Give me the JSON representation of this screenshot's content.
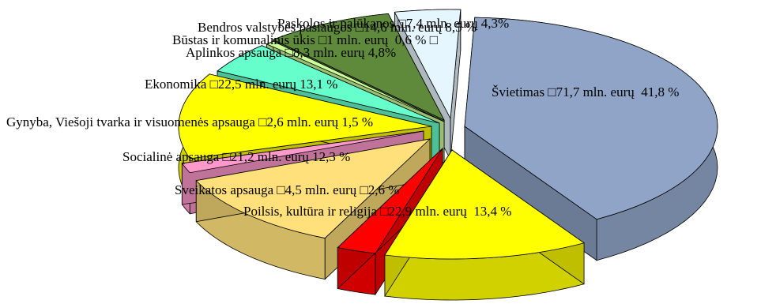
{
  "chart_data": {
    "type": "pie",
    "title": "",
    "style": "3d-exploded",
    "slices": [
      {
        "label": "Švietimas □71,7 mln. eurų  41,8 %",
        "value": 41.8,
        "color": "#8fa4c6"
      },
      {
        "label": "Poilsis, kultūra ir religija □22,9 mln. eurų  13,4 %",
        "value": 13.4,
        "color": "#ffff00"
      },
      {
        "label": "Sveikatos apsauga □4,5 mln. eurų □2,6 %",
        "value": 2.6,
        "color": "#ff0000"
      },
      {
        "label": "Socialinė apsauga □21,2 mln. eurų 12,3 %",
        "value": 12.3,
        "color": "#ffe07a"
      },
      {
        "label": "Gynyba, Viešoji tvarka ir visuomenės apsauga □2,6 mln. eurų 1,5 %",
        "value": 1.5,
        "color": "#ff99cc"
      },
      {
        "label": "Ekonomika □22,5 mln. eurų 13,1 %",
        "value": 13.1,
        "color": "#ffff00"
      },
      {
        "label": "Aplinkos apsauga □8,3 mln. eurų 4,8%",
        "value": 4.8,
        "color": "#66ffcc"
      },
      {
        "label": "Būstas ir komunalinis ūkis □1 mln. eurų  0,6 % □",
        "value": 0.6,
        "color": "#ccff99"
      },
      {
        "label": "Bendros valstybės paslaugos □14,6 mln. eurų 8,5 %",
        "value": 8.5,
        "color": "#5f8a3c"
      },
      {
        "label": "Paskolos ir palūkanos □7,4 mln. eurų 4,3%",
        "value": 4.3,
        "color": "#e6f6ff"
      }
    ]
  }
}
